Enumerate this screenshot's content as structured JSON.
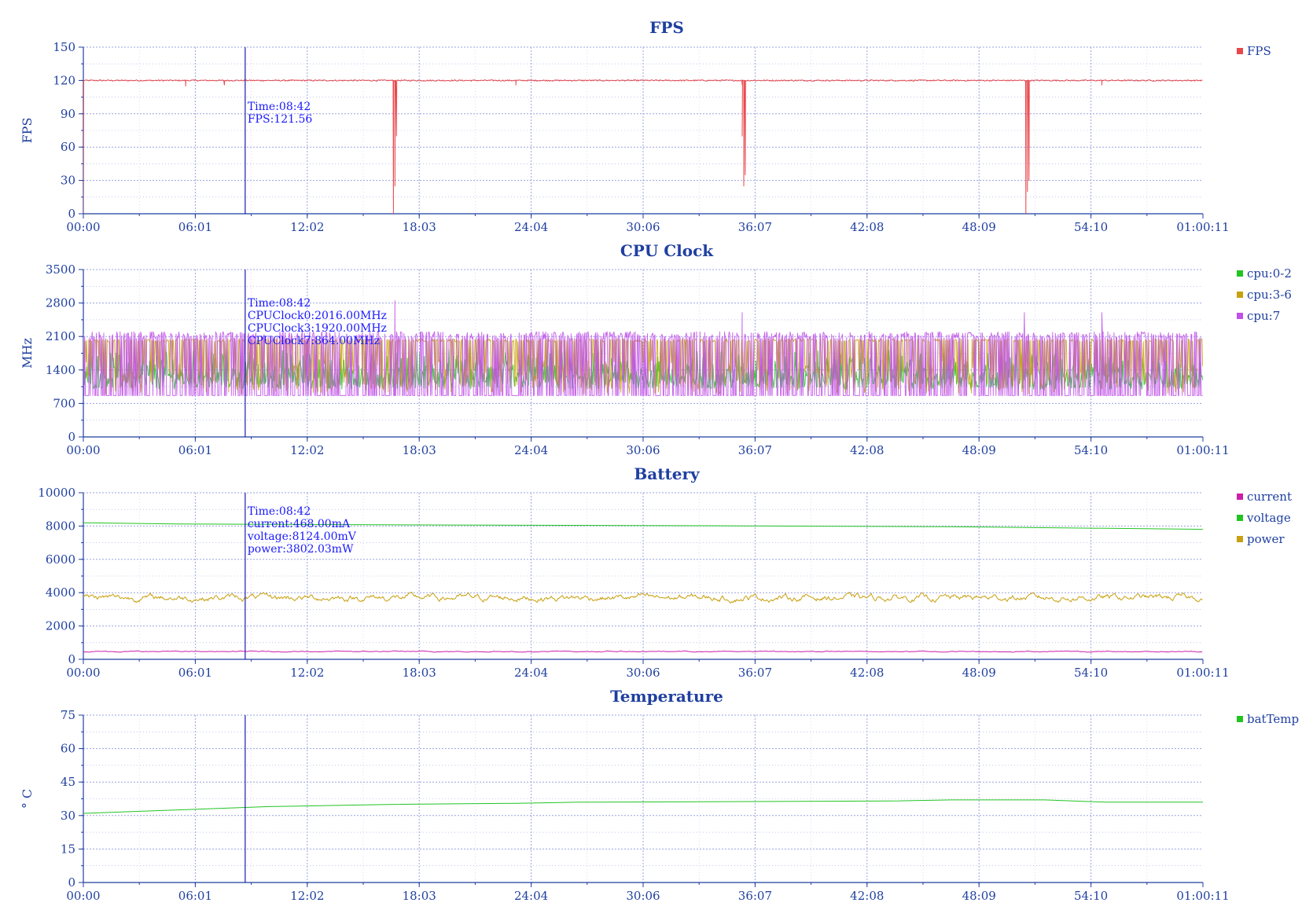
{
  "chart_data": [
    {
      "type": "line",
      "title": "FPS",
      "xlabel": "",
      "ylabel": "FPS",
      "x_ticks": [
        "00:00",
        "06:01",
        "12:02",
        "18:03",
        "24:04",
        "30:06",
        "36:07",
        "42:08",
        "48:09",
        "54:10",
        "01:00:11"
      ],
      "x_range_seconds": [
        0,
        3611
      ],
      "ylim": [
        0,
        150
      ],
      "y_ticks": [
        0,
        30,
        60,
        90,
        120,
        150
      ],
      "grid": true,
      "legend": "top-right",
      "series": [
        {
          "name": "FPS",
          "color": "#e8474c",
          "baseline": 120,
          "dips": [
            [
              0,
              0
            ],
            [
              330,
              115
            ],
            [
              455,
              116
            ],
            [
              1000,
              0
            ],
            [
              1005,
              25
            ],
            [
              1010,
              70
            ],
            [
              1395,
              116
            ],
            [
              2125,
              116
            ],
            [
              2125,
              70
            ],
            [
              2130,
              25
            ],
            [
              2135,
              35
            ],
            [
              3040,
              0
            ],
            [
              3045,
              20
            ],
            [
              3050,
              30
            ],
            [
              3285,
              116
            ]
          ]
        }
      ],
      "tooltip": [
        "Time:08:42",
        "FPS:121.56"
      ]
    },
    {
      "type": "line",
      "title": "CPU Clock",
      "xlabel": "",
      "ylabel": "MHz",
      "x_ticks": [
        "00:00",
        "06:01",
        "12:02",
        "18:03",
        "24:04",
        "30:06",
        "36:07",
        "42:08",
        "48:09",
        "54:10",
        "01:00:11"
      ],
      "x_range_seconds": [
        0,
        3611
      ],
      "ylim": [
        0,
        3500
      ],
      "y_ticks": [
        0,
        700,
        1400,
        2100,
        2800,
        3500
      ],
      "grid": true,
      "legend": "top-right",
      "series": [
        {
          "name": "cpu:0-2",
          "color": "#22c422",
          "range": [
            1000,
            1900
          ]
        },
        {
          "name": "cpu:3-6",
          "color": "#c8a010",
          "range": [
            900,
            2050
          ]
        },
        {
          "name": "cpu:7",
          "color": "#c050e8",
          "range": [
            864,
            2200
          ],
          "peaks": [
            [
              1005,
              2850
            ],
            [
              2125,
              2600
            ],
            [
              3035,
              2600
            ],
            [
              3285,
              2600
            ]
          ]
        }
      ],
      "tooltip": [
        "Time:08:42",
        "CPUClock0:2016.00MHz",
        "CPUClock3:1920.00MHz",
        "CPUClock7:864.00MHz"
      ]
    },
    {
      "type": "line",
      "title": "Battery",
      "xlabel": "",
      "ylabel": "",
      "x_ticks": [
        "00:00",
        "06:01",
        "12:02",
        "18:03",
        "24:04",
        "30:06",
        "36:07",
        "42:08",
        "48:09",
        "54:10",
        "01:00:11"
      ],
      "x_range_seconds": [
        0,
        3611
      ],
      "ylim": [
        0,
        10000
      ],
      "y_ticks": [
        0,
        2000,
        4000,
        6000,
        8000,
        10000
      ],
      "grid": true,
      "legend": "top-right",
      "series": [
        {
          "name": "current",
          "color": "#cc1faa",
          "mean": 468,
          "noise": 60
        },
        {
          "name": "voltage",
          "color": "#22c422",
          "points": [
            [
              0,
              8200
            ],
            [
              300,
              8124
            ],
            [
              1200,
              8060
            ],
            [
              2000,
              8020
            ],
            [
              2800,
              7960
            ],
            [
              3611,
              7800
            ]
          ]
        },
        {
          "name": "power",
          "color": "#c8a010",
          "mean": 3700,
          "noise": 450
        }
      ],
      "tooltip": [
        "Time:08:42",
        "current:468.00mA",
        "voltage:8124.00mV",
        "power:3802.03mW"
      ]
    },
    {
      "type": "line",
      "title": "Temperature",
      "xlabel": "",
      "ylabel": "° C",
      "x_ticks": [
        "00:00",
        "06:01",
        "12:02",
        "18:03",
        "24:04",
        "30:06",
        "36:07",
        "42:08",
        "48:09",
        "54:10",
        "01:00:11"
      ],
      "x_range_seconds": [
        0,
        3611
      ],
      "ylim": [
        0,
        75
      ],
      "y_ticks": [
        0,
        15,
        30,
        45,
        60,
        75
      ],
      "grid": true,
      "legend": "top-right",
      "series": [
        {
          "name": "batTemp",
          "color": "#22c422",
          "points": [
            [
              0,
              31
            ],
            [
              200,
              32
            ],
            [
              400,
              33
            ],
            [
              600,
              34
            ],
            [
              800,
              34.5
            ],
            [
              1000,
              35
            ],
            [
              1400,
              35.5
            ],
            [
              1600,
              36
            ],
            [
              2600,
              36.5
            ],
            [
              2800,
              37
            ],
            [
              3100,
              37
            ],
            [
              3300,
              36
            ],
            [
              3611,
              36
            ]
          ]
        }
      ]
    }
  ],
  "cursor_time_seconds": 522,
  "colors": {
    "axis": "#1f3fa0",
    "grid": "#9aa4e0",
    "cursor": "#1a1ab0"
  }
}
